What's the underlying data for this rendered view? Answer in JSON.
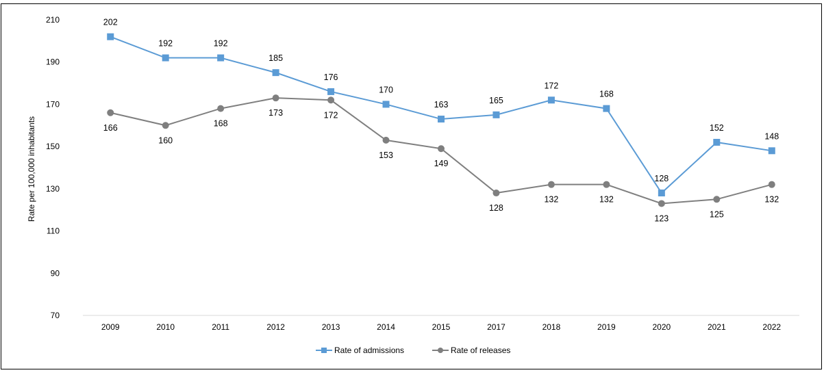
{
  "chart_data": {
    "type": "line",
    "title": "",
    "xlabel": "",
    "ylabel": "Rate per 100,000 inhabitants",
    "ylim": [
      70,
      210
    ],
    "yticks": [
      70,
      90,
      110,
      130,
      150,
      170,
      190,
      210
    ],
    "categories": [
      "2009",
      "2010",
      "2011",
      "2012",
      "2013",
      "2014",
      "2015",
      "2017",
      "2018",
      "2019",
      "2020",
      "2021",
      "2022"
    ],
    "grid": false,
    "legend_position": "bottom",
    "series": [
      {
        "name": "Rate of admissions",
        "marker": "square",
        "color": "#5B9BD5",
        "label_position": "above",
        "values": [
          202,
          192,
          192,
          185,
          176,
          170,
          163,
          165,
          172,
          168,
          128,
          152,
          148
        ]
      },
      {
        "name": "Rate of releases",
        "marker": "circle",
        "color": "#7F7F7F",
        "label_position": "below",
        "values": [
          166,
          160,
          168,
          173,
          172,
          153,
          149,
          128,
          132,
          132,
          123,
          125,
          132
        ]
      }
    ]
  }
}
